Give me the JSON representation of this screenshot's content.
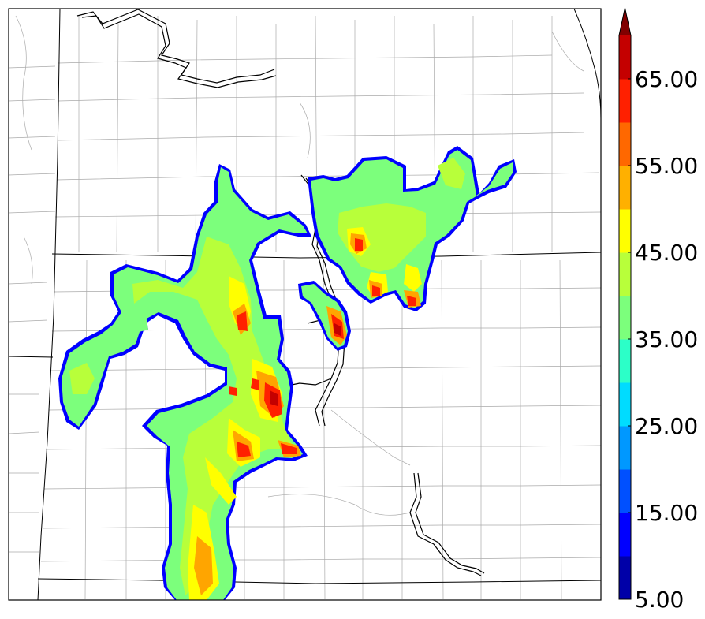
{
  "map": {
    "type": "filled-contour-radar-map",
    "grid": false,
    "legend_placement": "right",
    "field_colors": {
      "outline": "#0000ff",
      "base": "#7cfc7c",
      "mid": "#b5ff3c",
      "high": "#ffff00",
      "higher": "#ffa500",
      "peak": "#ff2000",
      "extreme": "#c40000"
    }
  },
  "colorbar": {
    "min": 5,
    "max": 70,
    "extend": "max",
    "levels": [
      5,
      10,
      15,
      20,
      25,
      30,
      35,
      40,
      45,
      50,
      55,
      60,
      65,
      70
    ],
    "colors": [
      "#0000a8",
      "#0000ff",
      "#0050ff",
      "#0098ff",
      "#00dcff",
      "#2cffc8",
      "#7cff7c",
      "#b8ff3a",
      "#ffff00",
      "#ffb000",
      "#ff6800",
      "#ff2000",
      "#c40000",
      "#800000"
    ],
    "ticks": [
      {
        "value": 5,
        "label": "5.00"
      },
      {
        "value": 15,
        "label": "15.00"
      },
      {
        "value": 25,
        "label": "25.00"
      },
      {
        "value": 35,
        "label": "35.00"
      },
      {
        "value": 45,
        "label": "45.00"
      },
      {
        "value": 55,
        "label": "55.00"
      },
      {
        "value": 65,
        "label": "65.00"
      }
    ]
  }
}
